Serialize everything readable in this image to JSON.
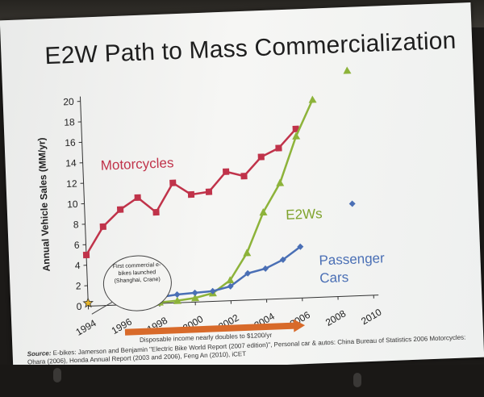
{
  "slide": {
    "title": "E2W Path to Mass Commercialization",
    "source_label": "Source:",
    "source_text": "E-bikes: Jamerson and Benjamin \"Electric Bike World Report (2007 edition)\", Personal car & autos: China Bureau of Statistics 2006 Motorcycles: Ohara (2006), Honda Annual Report (2003 and 2006), Feng An (2010), iCET"
  },
  "chart_data": {
    "type": "line",
    "ylabel": "Annual Vehicle Sales (MM/yr)",
    "xlabel": "",
    "xlim": [
      1994,
      2010
    ],
    "ylim": [
      0,
      20
    ],
    "xticks": [
      "1994",
      "1996",
      "1998",
      "2000",
      "2002",
      "2004",
      "2006",
      "2008",
      "2010"
    ],
    "yticks": [
      "0",
      "2",
      "4",
      "6",
      "8",
      "10",
      "12",
      "14",
      "16",
      "18",
      "20"
    ],
    "series": [
      {
        "name": "Motorcycles",
        "color": "#c0334a",
        "marker": "square",
        "x": [
          1994,
          1995,
          1996,
          1997,
          1998,
          1999,
          2000,
          2001,
          2002,
          2003,
          2004,
          2005,
          2006
        ],
        "y": [
          5.0,
          7.7,
          9.3,
          10.4,
          8.9,
          11.7,
          10.5,
          10.7,
          12.6,
          12.1,
          13.9,
          14.7,
          16.5
        ]
      },
      {
        "name": "E2Ws",
        "color": "#8db33a",
        "marker": "triangle",
        "x": [
          1998,
          1999,
          2000,
          2001,
          2002,
          2003,
          2004,
          2005,
          2006,
          2007
        ],
        "y": [
          0.1,
          0.2,
          0.4,
          0.8,
          2.0,
          4.6,
          8.5,
          11.3,
          15.8,
          19.3
        ],
        "outlier": {
          "x": 2009,
          "y": 22
        }
      },
      {
        "name": "Passenger Cars",
        "color": "#4a6fb5",
        "marker": "diamond",
        "x": [
          1996,
          1997,
          1998,
          1999,
          2000,
          2001,
          2002,
          2003,
          2004,
          2005,
          2006
        ],
        "y": [
          0.3,
          0.4,
          0.6,
          0.8,
          0.9,
          1.0,
          1.4,
          2.6,
          3.0,
          3.8,
          5.0
        ],
        "outlier": {
          "x": 2009,
          "y": 9.0
        }
      }
    ],
    "annotations": {
      "motorcycles": "Motorcycles",
      "e2ws": "E2Ws",
      "cars_line1": "Passenger",
      "cars_line2": "Cars",
      "callout": "First commercial e-bikes launched (Shanghai, Crane)",
      "income": "Disposable income nearly doubles to $1200/yr"
    },
    "income_arrow": {
      "from": 1996,
      "to": 2006,
      "color": "#d86a2a"
    },
    "star_marker": {
      "x": 1994,
      "y": 0.3
    }
  }
}
